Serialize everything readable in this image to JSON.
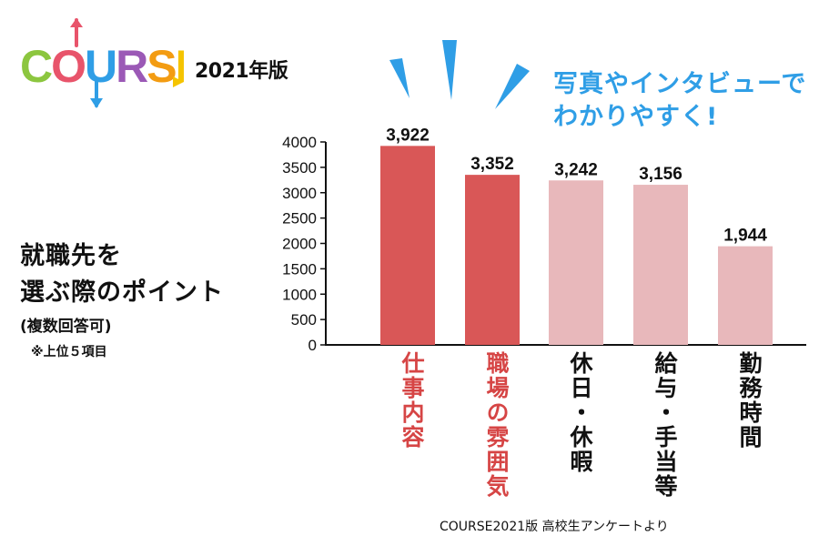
{
  "header": {
    "logo_text": "COURSE",
    "edition": "2021年版"
  },
  "left": {
    "title_lines": [
      "就職先を",
      "選ぶ際のポイント"
    ],
    "subtitle": "(複数回答可)",
    "note": "※上位５項目"
  },
  "callout": {
    "lines": [
      "写真やインタビューで",
      "わかりやすく!"
    ]
  },
  "source": "COURSE2021版 高校生アンケートより",
  "colors": {
    "highlight": "#d95757",
    "normal": "#e8b8bb",
    "highlight_label": "#d64545",
    "normal_label": "#111111",
    "accent": "#2f9ee6"
  },
  "chart_data": {
    "type": "bar",
    "categories": [
      "仕事内容",
      "職場の雰囲気",
      "休日・休暇",
      "給与・手当等",
      "勤務時間"
    ],
    "values": [
      3922,
      3352,
      3242,
      3156,
      1944
    ],
    "data_labels": [
      "3,922",
      "3,352",
      "3,242",
      "3,156",
      "1,944"
    ],
    "highlighted": [
      true,
      true,
      false,
      false,
      false
    ],
    "ylim": [
      0,
      4000
    ],
    "yticks": [
      0,
      500,
      1000,
      1500,
      2000,
      2500,
      3000,
      3500,
      4000
    ],
    "grid": false,
    "xlabel": "",
    "ylabel": ""
  }
}
